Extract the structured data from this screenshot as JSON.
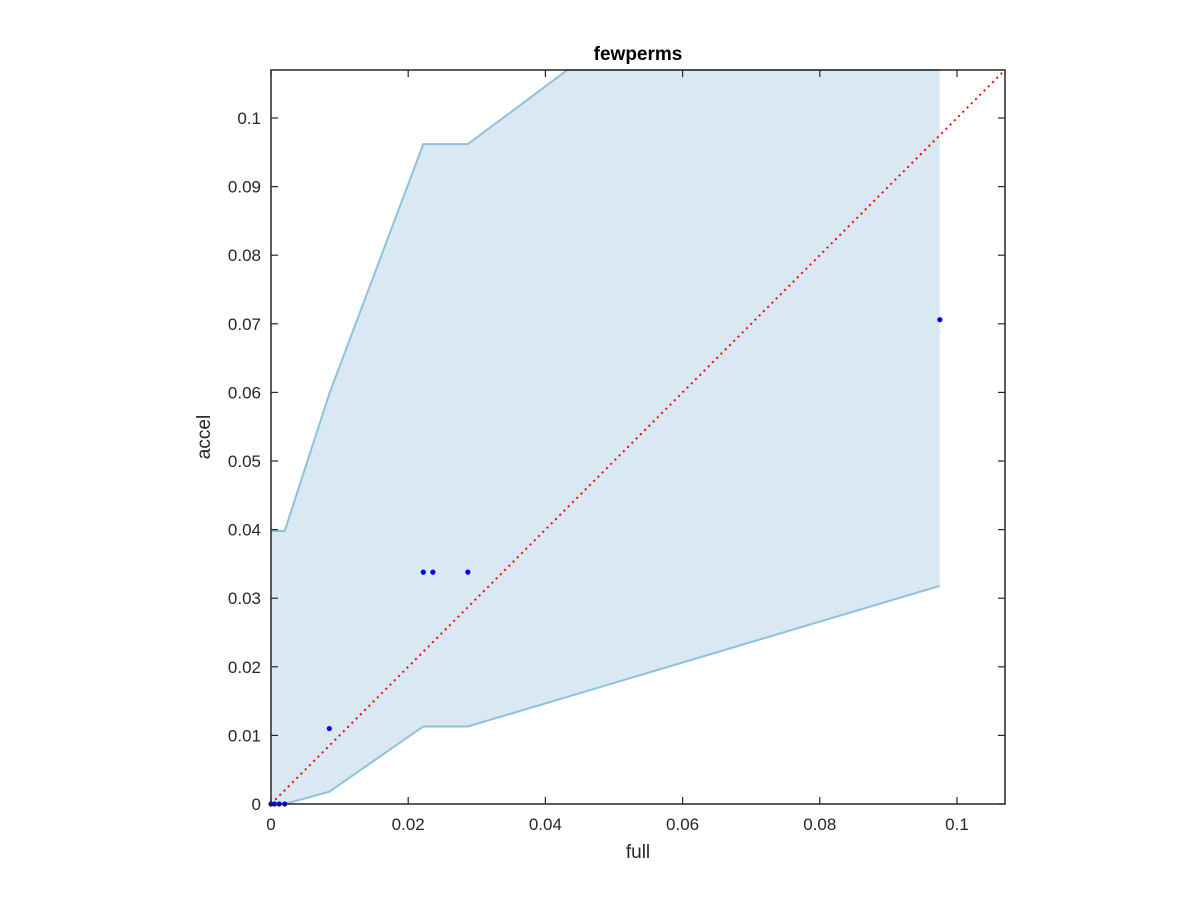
{
  "chart_data": {
    "type": "scatter",
    "title": "fewperms",
    "xlabel": "full",
    "ylabel": "accel",
    "xlim": [
      0,
      0.107
    ],
    "ylim": [
      0,
      0.107
    ],
    "xticks": [
      0,
      0.02,
      0.04,
      0.06,
      0.08,
      0.1
    ],
    "xtick_labels": [
      "0",
      "0.02",
      "0.04",
      "0.06",
      "0.08",
      "0.1"
    ],
    "yticks": [
      0,
      0.01,
      0.02,
      0.03,
      0.04,
      0.05,
      0.06,
      0.07,
      0.08,
      0.09,
      0.1
    ],
    "ytick_labels": [
      "0",
      "0.01",
      "0.02",
      "0.03",
      "0.04",
      "0.05",
      "0.06",
      "0.07",
      "0.08",
      "0.09",
      "0.1"
    ],
    "grid": false,
    "band": {
      "upper": [
        [
          0,
          0.0398
        ],
        [
          0.002,
          0.0398
        ],
        [
          0.0085,
          0.0598
        ],
        [
          0.0222,
          0.0962
        ],
        [
          0.0287,
          0.0962
        ],
        [
          0.0432,
          0.107
        ],
        [
          0.0975,
          0.107
        ]
      ],
      "lower": [
        [
          0,
          0
        ],
        [
          0.002,
          0
        ],
        [
          0.0085,
          0.0018
        ],
        [
          0.0222,
          0.0113
        ],
        [
          0.0287,
          0.0113
        ],
        [
          0.0975,
          0.0318
        ]
      ],
      "color": "#dae8f4",
      "edge_color": "#8fc1df"
    },
    "reference_line": {
      "from": [
        0,
        0
      ],
      "to": [
        0.107,
        0.107
      ],
      "color": "#ff0000",
      "style": "dotted"
    },
    "points": {
      "color": "#0000ff",
      "x": [
        0,
        0.0005,
        0.0012,
        0.002,
        0.0085,
        0.0222,
        0.0236,
        0.0287,
        0.0975
      ],
      "y": [
        0,
        0,
        0,
        0,
        0.011,
        0.0338,
        0.0338,
        0.0338,
        0.0706
      ]
    }
  }
}
